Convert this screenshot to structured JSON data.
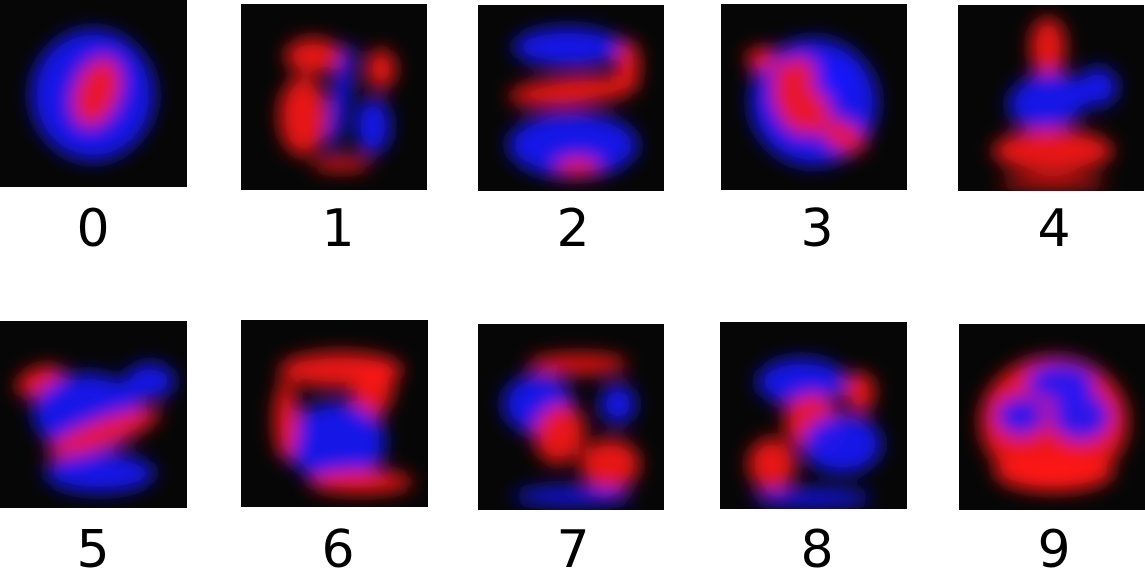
{
  "panels": [
    {
      "label": "0"
    },
    {
      "label": "1"
    },
    {
      "label": "2"
    },
    {
      "label": "3"
    },
    {
      "label": "4"
    },
    {
      "label": "5"
    },
    {
      "label": "6"
    },
    {
      "label": "7"
    },
    {
      "label": "8"
    },
    {
      "label": "9"
    }
  ]
}
